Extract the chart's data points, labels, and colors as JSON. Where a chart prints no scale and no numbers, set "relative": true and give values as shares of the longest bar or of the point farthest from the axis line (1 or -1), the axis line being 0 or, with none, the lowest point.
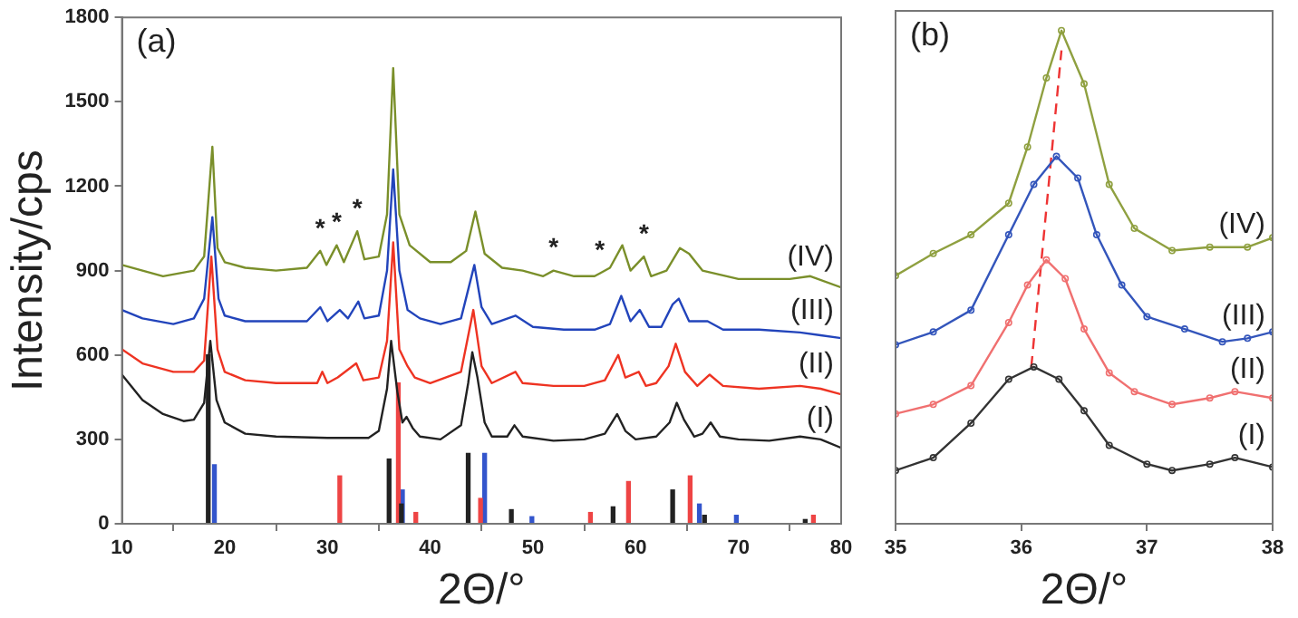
{
  "chart_data": [
    {
      "type": "line",
      "title": "(a)",
      "xlabel": "2Θ/°",
      "ylabel": "Intensity/cps",
      "xlim": [
        10,
        80
      ],
      "xticks": [
        10,
        20,
        30,
        40,
        50,
        60,
        70,
        80
      ],
      "ylim": [
        0,
        1800
      ],
      "yticks": [
        0,
        300,
        600,
        900,
        1200,
        1500,
        1800
      ],
      "series": [
        {
          "name": "(I)",
          "color": "#222222",
          "x": [
            10,
            12,
            14,
            16,
            17,
            18,
            18.6,
            19.2,
            20,
            22,
            25,
            30,
            34,
            35,
            35.8,
            36.2,
            36.8,
            37.3,
            37.7,
            38.3,
            39,
            41,
            43,
            43.7,
            44.1,
            44.6,
            45.3,
            46,
            47.5,
            48.2,
            49,
            52,
            55,
            57,
            58.2,
            59,
            60,
            62,
            63.3,
            64,
            64.7,
            65.7,
            66.5,
            67.3,
            68.2,
            70,
            73,
            76,
            78,
            80
          ],
          "values": [
            530,
            440,
            390,
            365,
            370,
            430,
            650,
            440,
            360,
            320,
            310,
            305,
            305,
            330,
            480,
            650,
            470,
            360,
            380,
            340,
            310,
            300,
            350,
            500,
            610,
            520,
            360,
            310,
            310,
            350,
            310,
            295,
            300,
            320,
            390,
            330,
            300,
            310,
            360,
            430,
            370,
            310,
            320,
            360,
            310,
            300,
            295,
            310,
            300,
            270
          ]
        },
        {
          "name": "(II)",
          "color": "#ee3322",
          "x": [
            10,
            12,
            15,
            17,
            18,
            18.7,
            19.3,
            20,
            22,
            25,
            29,
            29.5,
            30,
            31,
            32.8,
            33.5,
            35,
            35.8,
            36.4,
            37,
            37.8,
            38.5,
            40,
            43,
            44.2,
            45,
            46,
            48.3,
            49,
            52,
            55,
            57,
            58.3,
            59,
            60.3,
            61,
            62,
            63.2,
            63.9,
            64.8,
            66,
            67.2,
            68.5,
            72,
            76,
            78,
            80
          ],
          "values": [
            620,
            570,
            540,
            540,
            580,
            950,
            620,
            540,
            510,
            500,
            500,
            540,
            500,
            520,
            570,
            510,
            520,
            650,
            1000,
            620,
            560,
            520,
            500,
            540,
            760,
            560,
            500,
            540,
            500,
            490,
            490,
            510,
            600,
            520,
            540,
            490,
            500,
            560,
            640,
            540,
            490,
            530,
            490,
            480,
            490,
            480,
            460
          ]
        },
        {
          "name": "(III)",
          "color": "#2244bb",
          "x": [
            10,
            12,
            15,
            17,
            18,
            18.8,
            19.4,
            20,
            22,
            25,
            28,
            29.3,
            30,
            31.2,
            32,
            33,
            33.6,
            35,
            35.8,
            36.4,
            37,
            37.8,
            39,
            41,
            43,
            44.3,
            45,
            46,
            48.3,
            50,
            53,
            56,
            57.5,
            58.6,
            59.5,
            60.4,
            61.3,
            62.5,
            63.6,
            64.2,
            65.2,
            67,
            68.5,
            72,
            76,
            78,
            80
          ],
          "values": [
            760,
            730,
            710,
            730,
            800,
            1090,
            800,
            740,
            720,
            720,
            720,
            770,
            720,
            760,
            730,
            790,
            730,
            740,
            900,
            1260,
            900,
            760,
            730,
            710,
            730,
            920,
            770,
            710,
            740,
            700,
            690,
            690,
            710,
            810,
            720,
            760,
            700,
            700,
            780,
            800,
            720,
            720,
            690,
            690,
            680,
            670,
            660
          ]
        },
        {
          "name": "(IV)",
          "color": "#7a8f2a",
          "x": [
            10,
            12,
            14,
            17,
            18,
            18.8,
            19.3,
            20,
            22,
            25,
            28,
            29.3,
            29.9,
            30.9,
            31.6,
            32.9,
            33.6,
            35,
            35.8,
            36.4,
            37,
            38,
            40,
            42,
            43.5,
            44.4,
            45.3,
            47,
            49,
            51,
            52,
            54,
            56,
            56.5,
            57.5,
            58.7,
            59.5,
            60.8,
            61.5,
            63,
            64.3,
            65.2,
            66.5,
            70,
            75,
            77,
            80
          ],
          "values": [
            920,
            900,
            880,
            900,
            950,
            1340,
            980,
            930,
            910,
            900,
            910,
            970,
            920,
            990,
            930,
            1040,
            940,
            950,
            1100,
            1620,
            1100,
            990,
            930,
            930,
            970,
            1110,
            960,
            910,
            900,
            880,
            900,
            880,
            880,
            890,
            910,
            990,
            900,
            950,
            880,
            900,
            980,
            960,
            900,
            870,
            870,
            880,
            840
          ]
        },
        {
          "type": "bar",
          "color": "#222222",
          "x": [
            18.4,
            36.0,
            37.2,
            43.7,
            47.9,
            57.8,
            63.6,
            66.7,
            76.5
          ],
          "values": [
            600,
            230,
            70,
            250,
            50,
            60,
            120,
            30,
            15
          ]
        },
        {
          "type": "bar",
          "color": "#ee4444",
          "x": [
            31.2,
            36.9,
            38.6,
            44.9,
            55.6,
            59.3,
            65.3,
            77.3
          ],
          "values": [
            170,
            500,
            40,
            90,
            40,
            150,
            170,
            30
          ]
        },
        {
          "type": "bar",
          "color": "#3355cc",
          "x": [
            19.0,
            37.3,
            45.3,
            49.9,
            66.2,
            69.8
          ],
          "values": [
            210,
            120,
            250,
            25,
            70,
            30
          ]
        }
      ],
      "annotations": [
        {
          "text": "*",
          "x": 29.3,
          "y": 970
        },
        {
          "text": "*",
          "x": 30.9,
          "y": 990
        },
        {
          "text": "*",
          "x": 32.9,
          "y": 1040
        },
        {
          "text": "*",
          "x": 52,
          "y": 900
        },
        {
          "text": "*",
          "x": 56.5,
          "y": 890
        },
        {
          "text": "*",
          "x": 60.8,
          "y": 950
        }
      ]
    },
    {
      "type": "line",
      "title": "(b)",
      "xlabel": "2Θ/°",
      "relative": true,
      "marker": "circle",
      "xlim": [
        35,
        38
      ],
      "xticks": [
        35,
        36,
        37,
        38
      ],
      "series": [
        {
          "name": "(I)",
          "color": "#333333",
          "x": [
            35,
            35.3,
            35.6,
            35.9,
            36.1,
            36.3,
            36.5,
            36.7,
            37,
            37.2,
            37.5,
            37.7,
            38
          ],
          "values": [
            0.108,
            0.134,
            0.204,
            0.293,
            0.318,
            0.293,
            0.229,
            0.159,
            0.121,
            0.108,
            0.121,
            0.134,
            0.115
          ]
        },
        {
          "name": "(II)",
          "color": "#f07070",
          "x": [
            35,
            35.3,
            35.6,
            35.9,
            36.05,
            36.2,
            36.35,
            36.5,
            36.7,
            36.9,
            37.2,
            37.5,
            37.7,
            38
          ],
          "values": [
            0.223,
            0.242,
            0.28,
            0.408,
            0.484,
            0.535,
            0.497,
            0.395,
            0.306,
            0.268,
            0.242,
            0.255,
            0.268,
            0.255
          ]
        },
        {
          "name": "(III)",
          "color": "#3355bb",
          "x": [
            35,
            35.3,
            35.6,
            35.9,
            36.1,
            36.28,
            36.45,
            36.6,
            36.8,
            37,
            37.3,
            37.6,
            37.8,
            38
          ],
          "values": [
            0.363,
            0.389,
            0.433,
            0.586,
            0.688,
            0.745,
            0.701,
            0.586,
            0.484,
            0.42,
            0.395,
            0.369,
            0.376,
            0.389
          ]
        },
        {
          "name": "(IV)",
          "color": "#8fa040",
          "x": [
            35,
            35.3,
            35.6,
            35.9,
            36.05,
            36.2,
            36.32,
            36.5,
            36.7,
            36.9,
            37.2,
            37.5,
            37.8,
            38
          ],
          "values": [
            0.503,
            0.548,
            0.586,
            0.65,
            0.764,
            0.904,
            1.0,
            0.892,
            0.688,
            0.599,
            0.554,
            0.561,
            0.561,
            0.58
          ]
        },
        {
          "color": "#ee3333",
          "marker": "none",
          "line_style": "dashed",
          "x": [
            36.08,
            36.32
          ],
          "values": [
            0.318,
            0.96
          ]
        }
      ]
    }
  ]
}
